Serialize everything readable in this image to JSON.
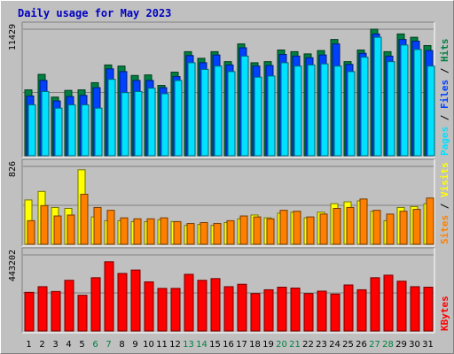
{
  "title": "Daily usage for May 2023",
  "colors": {
    "background": "#c0c0c0",
    "title": "#0000c0",
    "hits": "#008040",
    "files": "#0040ff",
    "pages": "#00e0ff",
    "visits": "#ffff00",
    "sites": "#ff8000",
    "kbytes": "#ff0000",
    "weekend_label": "#008040",
    "weekday_label": "#000000"
  },
  "chart_data": [
    {
      "type": "bar",
      "x": [
        1,
        2,
        3,
        4,
        5,
        6,
        7,
        8,
        9,
        10,
        11,
        12,
        13,
        14,
        15,
        16,
        17,
        18,
        19,
        20,
        21,
        22,
        23,
        24,
        25,
        26,
        27,
        28,
        29,
        30,
        31
      ],
      "weekend_days": [
        6,
        7,
        13,
        14,
        20,
        21,
        27,
        28
      ],
      "y_max_label": "11429",
      "ylim": [
        0,
        11429
      ],
      "series": [
        {
          "name": "Hits",
          "values": [
            5950,
            7350,
            5300,
            5900,
            5950,
            6600,
            8200,
            8100,
            7250,
            7300,
            6350,
            7550,
            9400,
            8800,
            9400,
            8500,
            10100,
            8400,
            8500,
            9550,
            9400,
            9200,
            9500,
            10500,
            8500,
            9550,
            11429,
            9400,
            11000,
            10700,
            9950
          ]
        },
        {
          "name": "Files",
          "values": [
            5400,
            6800,
            4950,
            5350,
            5450,
            6150,
            7850,
            7600,
            6800,
            6800,
            6150,
            7150,
            9050,
            8400,
            9100,
            8200,
            9750,
            8100,
            8150,
            9150,
            9000,
            8850,
            9100,
            10100,
            8250,
            9250,
            11000,
            9000,
            10500,
            10350,
            9500
          ]
        },
        {
          "name": "Pages",
          "values": [
            4600,
            5800,
            4300,
            4600,
            4600,
            4300,
            6900,
            5700,
            5800,
            6100,
            5600,
            6800,
            8400,
            7800,
            8100,
            7600,
            9000,
            7100,
            7200,
            8400,
            8100,
            8200,
            8300,
            8100,
            7600,
            8900,
            10700,
            8500,
            10000,
            9600,
            8100
          ]
        }
      ],
      "legend": [
        "Pages",
        "Files",
        "Hits"
      ]
    },
    {
      "type": "bar",
      "x": [
        1,
        2,
        3,
        4,
        5,
        6,
        7,
        8,
        9,
        10,
        11,
        12,
        13,
        14,
        15,
        16,
        17,
        18,
        19,
        20,
        21,
        22,
        23,
        24,
        25,
        26,
        27,
        28,
        29,
        30,
        31
      ],
      "y_max_label": "826",
      "ylim": [
        0,
        826
      ],
      "series": [
        {
          "name": "Visits",
          "values": [
            470,
            560,
            390,
            380,
            790,
            290,
            250,
            250,
            240,
            240,
            260,
            240,
            200,
            210,
            200,
            230,
            270,
            310,
            280,
            330,
            340,
            280,
            340,
            430,
            450,
            460,
            350,
            250,
            390,
            400,
            430
          ]
        },
        {
          "name": "Sites",
          "values": [
            250,
            410,
            300,
            310,
            530,
            390,
            360,
            280,
            270,
            270,
            280,
            240,
            220,
            230,
            220,
            250,
            300,
            290,
            270,
            360,
            350,
            290,
            320,
            380,
            390,
            480,
            360,
            320,
            350,
            370,
            490
          ]
        }
      ],
      "legend": [
        "Sites",
        "Visits"
      ]
    },
    {
      "type": "bar",
      "x": [
        1,
        2,
        3,
        4,
        5,
        6,
        7,
        8,
        9,
        10,
        11,
        12,
        13,
        14,
        15,
        16,
        17,
        18,
        19,
        20,
        21,
        22,
        23,
        24,
        25,
        26,
        27,
        28,
        29,
        30,
        31
      ],
      "y_max_label": "443202",
      "ylim": [
        0,
        443202
      ],
      "series": [
        {
          "name": "KBytes",
          "values": [
            225000,
            258000,
            230000,
            295000,
            208000,
            310000,
            403000,
            335000,
            355000,
            286000,
            248000,
            248000,
            330000,
            295000,
            305000,
            258000,
            272000,
            218000,
            240000,
            255000,
            250000,
            218000,
            232000,
            215000,
            268000,
            240000,
            310000,
            325000,
            290000,
            258000,
            255000
          ]
        }
      ],
      "legend": [
        "KBytes"
      ]
    }
  ]
}
